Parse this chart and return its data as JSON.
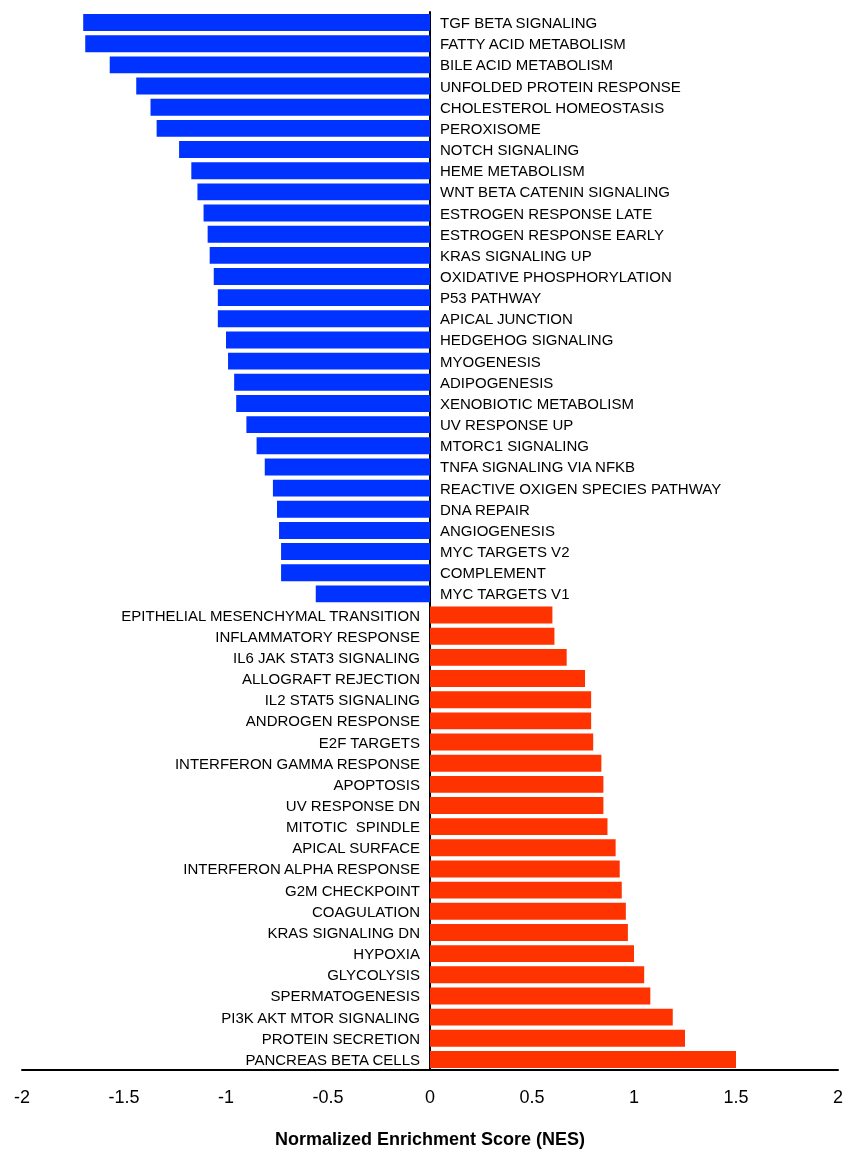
{
  "chart_data": {
    "type": "bar",
    "orientation": "horizontal",
    "xlabel": "Normalized Enrichment Score (NES)",
    "categories": [
      "TGF BETA SIGNALING",
      "FATTY ACID METABOLISM",
      "BILE ACID METABOLISM",
      "UNFOLDED PROTEIN RESPONSE",
      "CHOLESTEROL HOMEOSTASIS",
      "PEROXISOME",
      "NOTCH SIGNALING",
      "HEME METABOLISM",
      "WNT BETA CATENIN SIGNALING",
      "ESTROGEN RESPONSE LATE",
      "ESTROGEN RESPONSE EARLY",
      "KRAS SIGNALING UP",
      "OXIDATIVE PHOSPHORYLATION",
      "P53 PATHWAY",
      "APICAL JUNCTION",
      "HEDGEHOG SIGNALING",
      "MYOGENESIS",
      "ADIPOGENESIS",
      "XENOBIOTIC METABOLISM",
      "UV RESPONSE UP",
      "MTORC1 SIGNALING",
      "TNFA SIGNALING VIA NFKB",
      "REACTIVE OXIGEN SPECIES PATHWAY",
      "DNA REPAIR",
      "ANGIOGENESIS",
      "MYC TARGETS V2",
      "COMPLEMENT",
      "MYC TARGETS V1",
      "EPITHELIAL MESENCHYMAL TRANSITION",
      "INFLAMMATORY RESPONSE",
      "IL6 JAK STAT3 SIGNALING",
      "ALLOGRAFT REJECTION",
      "IL2 STAT5 SIGNALING",
      "ANDROGEN RESPONSE",
      "E2F TARGETS",
      "INTERFERON GAMMA RESPONSE",
      "APOPTOSIS",
      "UV RESPONSE DN",
      "MITOTIC  SPINDLE",
      "APICAL SURFACE",
      "INTERFERON ALPHA RESPONSE",
      "G2M CHECKPOINT",
      "COAGULATION",
      "KRAS SIGNALING DN",
      "HYPOXIA",
      "GLYCOLYSIS",
      "SPERMATOGENESIS",
      "PI3K AKT MTOR SIGNALING",
      "PROTEIN SECRETION",
      "PANCREAS BETA CELLS"
    ],
    "values": [
      -1.7,
      -1.69,
      -1.57,
      -1.44,
      -1.37,
      -1.34,
      -1.23,
      -1.17,
      -1.14,
      -1.11,
      -1.09,
      -1.08,
      -1.06,
      -1.04,
      -1.04,
      -1.0,
      -0.99,
      -0.96,
      -0.95,
      -0.9,
      -0.85,
      -0.81,
      -0.77,
      -0.75,
      -0.74,
      -0.73,
      -0.73,
      -0.56,
      0.6,
      0.61,
      0.67,
      0.76,
      0.79,
      0.79,
      0.8,
      0.84,
      0.85,
      0.85,
      0.87,
      0.91,
      0.93,
      0.94,
      0.96,
      0.97,
      1.0,
      1.05,
      1.08,
      1.19,
      1.25,
      1.5
    ],
    "colors": [
      "#0033ff",
      "#0033ff",
      "#0033ff",
      "#0033ff",
      "#0033ff",
      "#0033ff",
      "#0033ff",
      "#0033ff",
      "#0033ff",
      "#0033ff",
      "#0033ff",
      "#0033ff",
      "#0033ff",
      "#0033ff",
      "#0033ff",
      "#0033ff",
      "#0033ff",
      "#0033ff",
      "#0033ff",
      "#0033ff",
      "#0033ff",
      "#0033ff",
      "#0033ff",
      "#0033ff",
      "#0033ff",
      "#0033ff",
      "#0033ff",
      "#0033ff",
      "#ff3300",
      "#ff3300",
      "#ff3300",
      "#ff3300",
      "#ff3300",
      "#ff3300",
      "#ff3300",
      "#ff3300",
      "#ff3300",
      "#ff3300",
      "#ff3300",
      "#ff3300",
      "#ff3300",
      "#ff3300",
      "#ff3300",
      "#ff3300",
      "#ff3300",
      "#ff3300",
      "#ff3300",
      "#ff3300",
      "#ff3300",
      "#ff3300"
    ],
    "xlim": [
      -2,
      2
    ],
    "xticks": [
      -2,
      -1.5,
      -1,
      -0.5,
      0,
      0.5,
      1,
      1.5,
      2
    ],
    "grid": false
  }
}
